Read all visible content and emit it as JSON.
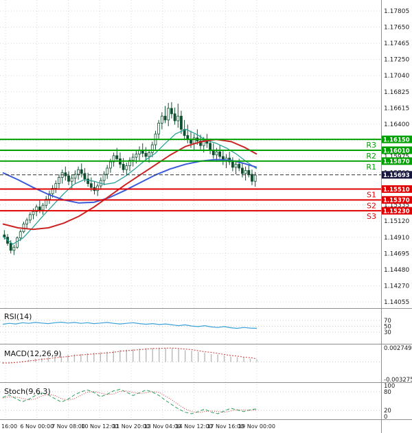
{
  "colors": {
    "background": "#ffffff",
    "grid": "#d8d8d8",
    "separator": "#8f8f8f",
    "axis_text": "#1a1a1a",
    "candle_border": "#0e4f2f",
    "candle_bull_fill": "#ffffff",
    "candle_bear_fill": "#0e4f2f",
    "resistance": "#00a000",
    "support": "#e10000",
    "current_badge": "#16163f",
    "current_line": "#2b2b2b",
    "ma_red": "#cc2222",
    "ma_blue": "#3b5bdb",
    "ma_teal": "#2aa198",
    "rsi_line": "#3aa0d8",
    "macd_hist": "#b9b9b9",
    "macd_signal": "#cc3333",
    "stoch_main": "#2e9e5b",
    "stoch_signal": "#cc3333"
  },
  "chart_data": {
    "type": "candlestick",
    "price_axis": {
      "ticks": [
        "1.17805",
        "1.17650",
        "1.17465",
        "1.17250",
        "1.17040",
        "1.16825",
        "1.16615",
        "1.16400",
        "1.16190",
        "1.15975",
        "1.15760",
        "1.15550",
        "1.15335",
        "1.15120",
        "1.14910",
        "1.14695",
        "1.14480",
        "1.14270",
        "1.14055"
      ]
    },
    "time_axis": {
      "labels": [
        "16:00",
        "6 Nov 00:00",
        "7 Nov 08:00",
        "10 Nov 12:00",
        "11 Nov 20:00",
        "13 Nov 04:00",
        "14 Nov 12:00",
        "17 Nov 16:00",
        "19 Nov 00:00"
      ]
    },
    "levels": {
      "resistance": [
        {
          "name": "R3",
          "price": 1.1615,
          "badge": "1.16150"
        },
        {
          "name": "R2",
          "price": 1.1601,
          "badge": "1.16010"
        },
        {
          "name": "R1",
          "price": 1.1587,
          "badge": "1.15870"
        }
      ],
      "support": [
        {
          "name": "S1",
          "price": 1.1551,
          "badge": "1.15510"
        },
        {
          "name": "S2",
          "price": 1.1537,
          "badge": "1.15370"
        },
        {
          "name": "S3",
          "price": 1.1523,
          "badge": "1.15230"
        }
      ],
      "current": {
        "price": 1.15693,
        "badge": "1.15693"
      }
    },
    "candles": [
      [
        1.1492,
        1.1498,
        1.1486,
        1.1489
      ],
      [
        1.1489,
        1.1493,
        1.1478,
        1.1481
      ],
      [
        1.1481,
        1.1485,
        1.1468,
        1.1472
      ],
      [
        1.1472,
        1.1479,
        1.1466,
        1.1476
      ],
      [
        1.1476,
        1.149,
        1.1474,
        1.1488
      ],
      [
        1.1488,
        1.1499,
        1.1484,
        1.1496
      ],
      [
        1.1496,
        1.1509,
        1.1494,
        1.1506
      ],
      [
        1.1506,
        1.1514,
        1.15,
        1.1511
      ],
      [
        1.1511,
        1.1521,
        1.1507,
        1.1518
      ],
      [
        1.1518,
        1.1526,
        1.1512,
        1.1522
      ],
      [
        1.1522,
        1.1531,
        1.1516,
        1.1528
      ],
      [
        1.1528,
        1.1536,
        1.152,
        1.1524
      ],
      [
        1.1524,
        1.1533,
        1.1518,
        1.153
      ],
      [
        1.153,
        1.1542,
        1.1526,
        1.1538
      ],
      [
        1.1538,
        1.1549,
        1.1532,
        1.1545
      ],
      [
        1.1545,
        1.1556,
        1.154,
        1.1552
      ],
      [
        1.1552,
        1.1562,
        1.1546,
        1.1558
      ],
      [
        1.1558,
        1.157,
        1.1552,
        1.1566
      ],
      [
        1.1566,
        1.1576,
        1.1558,
        1.1572
      ],
      [
        1.1572,
        1.158,
        1.1562,
        1.1568
      ],
      [
        1.1568,
        1.1574,
        1.1556,
        1.1561
      ],
      [
        1.1561,
        1.157,
        1.1552,
        1.1565
      ],
      [
        1.1565,
        1.1575,
        1.1558,
        1.157
      ],
      [
        1.157,
        1.158,
        1.1563,
        1.1576
      ],
      [
        1.1576,
        1.1584,
        1.1566,
        1.1571
      ],
      [
        1.1571,
        1.1578,
        1.156,
        1.1564
      ],
      [
        1.1564,
        1.1572,
        1.1554,
        1.1558
      ],
      [
        1.1558,
        1.1566,
        1.1548,
        1.1553
      ],
      [
        1.1553,
        1.1561,
        1.1544,
        1.1549
      ],
      [
        1.1549,
        1.1558,
        1.1542,
        1.1555
      ],
      [
        1.1555,
        1.1566,
        1.155,
        1.1562
      ],
      [
        1.1562,
        1.1574,
        1.1556,
        1.157
      ],
      [
        1.157,
        1.1582,
        1.1564,
        1.1578
      ],
      [
        1.1578,
        1.159,
        1.1572,
        1.1586
      ],
      [
        1.1586,
        1.1598,
        1.158,
        1.1594
      ],
      [
        1.1594,
        1.1604,
        1.1586,
        1.159
      ],
      [
        1.159,
        1.1598,
        1.1578,
        1.1583
      ],
      [
        1.1583,
        1.1591,
        1.1572,
        1.1576
      ],
      [
        1.1576,
        1.1585,
        1.1568,
        1.1581
      ],
      [
        1.1581,
        1.1592,
        1.1574,
        1.1588
      ],
      [
        1.1588,
        1.1597,
        1.158,
        1.1592
      ],
      [
        1.1592,
        1.16,
        1.1584,
        1.1596
      ],
      [
        1.1596,
        1.1606,
        1.1588,
        1.1601
      ],
      [
        1.1601,
        1.161,
        1.1592,
        1.1597
      ],
      [
        1.1597,
        1.1605,
        1.1588,
        1.1593
      ],
      [
        1.1593,
        1.1602,
        1.1585,
        1.1598
      ],
      [
        1.1598,
        1.1612,
        1.1592,
        1.1608
      ],
      [
        1.1608,
        1.1626,
        1.1602,
        1.1622
      ],
      [
        1.1622,
        1.164,
        1.1616,
        1.1636
      ],
      [
        1.1636,
        1.165,
        1.1628,
        1.1645
      ],
      [
        1.1645,
        1.1658,
        1.1636,
        1.164
      ],
      [
        1.164,
        1.1662,
        1.1632,
        1.1655
      ],
      [
        1.1655,
        1.1663,
        1.1642,
        1.1648
      ],
      [
        1.1648,
        1.1656,
        1.1634,
        1.1639
      ],
      [
        1.1639,
        1.1661,
        1.163,
        1.1645
      ],
      [
        1.1645,
        1.1652,
        1.1622,
        1.1628
      ],
      [
        1.1628,
        1.164,
        1.1614,
        1.162
      ],
      [
        1.162,
        1.1634,
        1.161,
        1.1615
      ],
      [
        1.1615,
        1.1626,
        1.1604,
        1.161
      ],
      [
        1.161,
        1.1622,
        1.16,
        1.1617
      ],
      [
        1.1617,
        1.1628,
        1.1608,
        1.1613
      ],
      [
        1.1613,
        1.1621,
        1.1602,
        1.1607
      ],
      [
        1.1607,
        1.1618,
        1.1598,
        1.1614
      ],
      [
        1.1614,
        1.1622,
        1.1604,
        1.161
      ],
      [
        1.161,
        1.1616,
        1.1596,
        1.1601
      ],
      [
        1.1601,
        1.161,
        1.159,
        1.1595
      ],
      [
        1.1595,
        1.1604,
        1.1586,
        1.1599
      ],
      [
        1.1599,
        1.1608,
        1.159,
        1.1593
      ],
      [
        1.1593,
        1.16,
        1.1582,
        1.1587
      ],
      [
        1.1587,
        1.1596,
        1.1578,
        1.1591
      ],
      [
        1.1591,
        1.1599,
        1.1582,
        1.1586
      ],
      [
        1.1586,
        1.1592,
        1.1574,
        1.1579
      ],
      [
        1.1579,
        1.1588,
        1.157,
        1.1583
      ],
      [
        1.1583,
        1.159,
        1.1574,
        1.1578
      ],
      [
        1.1578,
        1.1584,
        1.1566,
        1.1571
      ],
      [
        1.1571,
        1.158,
        1.1562,
        1.1575
      ],
      [
        1.1575,
        1.1582,
        1.1566,
        1.157
      ],
      [
        1.157,
        1.1576,
        1.1556,
        1.1561
      ],
      [
        1.1561,
        1.1573,
        1.1554,
        1.1569
      ]
    ],
    "overlays": [
      {
        "name": "ma-teal",
        "color_key": "ma_teal",
        "width": 1.3,
        "points": [
          [
            0,
            1.149
          ],
          [
            0.04,
            1.148
          ],
          [
            0.08,
            1.1488
          ],
          [
            0.12,
            1.1502
          ],
          [
            0.16,
            1.1517
          ],
          [
            0.2,
            1.1531
          ],
          [
            0.24,
            1.1545
          ],
          [
            0.28,
            1.1557
          ],
          [
            0.32,
            1.1563
          ],
          [
            0.36,
            1.1561
          ],
          [
            0.4,
            1.1557
          ],
          [
            0.44,
            1.1559
          ],
          [
            0.48,
            1.1567
          ],
          [
            0.52,
            1.1577
          ],
          [
            0.56,
            1.1588
          ],
          [
            0.6,
            1.1597
          ],
          [
            0.64,
            1.161
          ],
          [
            0.68,
            1.1622
          ],
          [
            0.72,
            1.1628
          ],
          [
            0.76,
            1.1622
          ],
          [
            0.8,
            1.1614
          ],
          [
            0.84,
            1.161
          ],
          [
            0.88,
            1.1604
          ],
          [
            0.92,
            1.1596
          ],
          [
            0.96,
            1.1586
          ],
          [
            1,
            1.1577
          ]
        ]
      },
      {
        "name": "ma-blue",
        "color_key": "ma_blue",
        "width": 2,
        "points": [
          [
            0,
            1.1572
          ],
          [
            0.06,
            1.1563
          ],
          [
            0.12,
            1.1553
          ],
          [
            0.18,
            1.1544
          ],
          [
            0.24,
            1.1537
          ],
          [
            0.3,
            1.1533
          ],
          [
            0.36,
            1.1534
          ],
          [
            0.42,
            1.154
          ],
          [
            0.48,
            1.1549
          ],
          [
            0.54,
            1.1559
          ],
          [
            0.6,
            1.1569
          ],
          [
            0.66,
            1.1577
          ],
          [
            0.72,
            1.1583
          ],
          [
            0.78,
            1.1587
          ],
          [
            0.84,
            1.1589
          ],
          [
            0.9,
            1.1588
          ],
          [
            0.95,
            1.1584
          ],
          [
            1,
            1.1579
          ]
        ]
      },
      {
        "name": "ma-red",
        "color_key": "ma_red",
        "width": 2,
        "points": [
          [
            0,
            1.1506
          ],
          [
            0.06,
            1.1501
          ],
          [
            0.12,
            1.1499
          ],
          [
            0.18,
            1.1501
          ],
          [
            0.24,
            1.1507
          ],
          [
            0.3,
            1.1516
          ],
          [
            0.36,
            1.1528
          ],
          [
            0.42,
            1.1542
          ],
          [
            0.48,
            1.1556
          ],
          [
            0.54,
            1.1569
          ],
          [
            0.6,
            1.1582
          ],
          [
            0.66,
            1.1595
          ],
          [
            0.72,
            1.1606
          ],
          [
            0.78,
            1.1612
          ],
          [
            0.84,
            1.1615
          ],
          [
            0.9,
            1.1612
          ],
          [
            0.95,
            1.1605
          ],
          [
            1,
            1.1596
          ]
        ]
      }
    ],
    "indicators": {
      "rsi": {
        "label": "RSI(14)",
        "levels": [
          "70",
          "50",
          "30"
        ],
        "range": [
          0,
          100
        ],
        "values": [
          57,
          60,
          58,
          62,
          60,
          63,
          61,
          59,
          62,
          64,
          61,
          63,
          60,
          62,
          59,
          61,
          63,
          60,
          58,
          60,
          62,
          59,
          57,
          59,
          56,
          58,
          55,
          52,
          55,
          51,
          49,
          52,
          48,
          46,
          49,
          45,
          43,
          46,
          44,
          43
        ]
      },
      "macd": {
        "label": "MACD(12,26,9)",
        "scale_top": "0.002749",
        "scale_bottom": "-0.003275",
        "histogram": [
          -0.0003,
          -0.0002,
          0,
          0.0002,
          0.0004,
          0.0006,
          0.0007,
          0.0009,
          0.001,
          0.0011,
          0.0013,
          0.0014,
          0.0015,
          0.0016,
          0.0017,
          0.0018,
          0.0019,
          0.0021,
          0.0022,
          0.0023,
          0.0024,
          0.0025,
          0.0026,
          0.0026,
          0.0027,
          0.0026,
          0.0025,
          0.0024,
          0.0022,
          0.0021,
          0.0019,
          0.0017,
          0.0015,
          0.0014,
          0.0012,
          0.001,
          0.0009,
          0.0008,
          0.0006,
          0.0005
        ],
        "signal": [
          -0.0002,
          -0.0002,
          -0.0001,
          0,
          0.0002,
          0.0003,
          0.0005,
          0.0006,
          0.0008,
          0.0009,
          0.001,
          0.0012,
          0.0013,
          0.0014,
          0.0015,
          0.0016,
          0.0017,
          0.0018,
          0.002,
          0.0021,
          0.0022,
          0.0023,
          0.0024,
          0.0025,
          0.0025,
          0.0026,
          0.0026,
          0.0025,
          0.0024,
          0.0023,
          0.0021,
          0.0019,
          0.0018,
          0.0016,
          0.0014,
          0.0012,
          0.0011,
          0.0009,
          0.0008,
          0.0006
        ]
      },
      "stoch": {
        "label": "Stoch(9,6,3)",
        "levels": [
          "100",
          "80",
          "20",
          "0"
        ],
        "range": [
          0,
          100
        ],
        "k": [
          62,
          70,
          58,
          48,
          56,
          68,
          77,
          70,
          58,
          47,
          56,
          70,
          80,
          86,
          78,
          64,
          72,
          83,
          88,
          79,
          68,
          77,
          86,
          79,
          68,
          52,
          38,
          24,
          14,
          9,
          16,
          24,
          14,
          9,
          18,
          27,
          21,
          16,
          22,
          25
        ],
        "d": [
          60,
          64,
          63,
          59,
          54,
          57,
          67,
          72,
          68,
          58,
          53,
          58,
          69,
          79,
          81,
          76,
          71,
          73,
          81,
          83,
          78,
          75,
          77,
          81,
          78,
          66,
          53,
          38,
          25,
          16,
          13,
          16,
          18,
          16,
          14,
          18,
          22,
          21,
          20,
          21
        ]
      }
    }
  }
}
